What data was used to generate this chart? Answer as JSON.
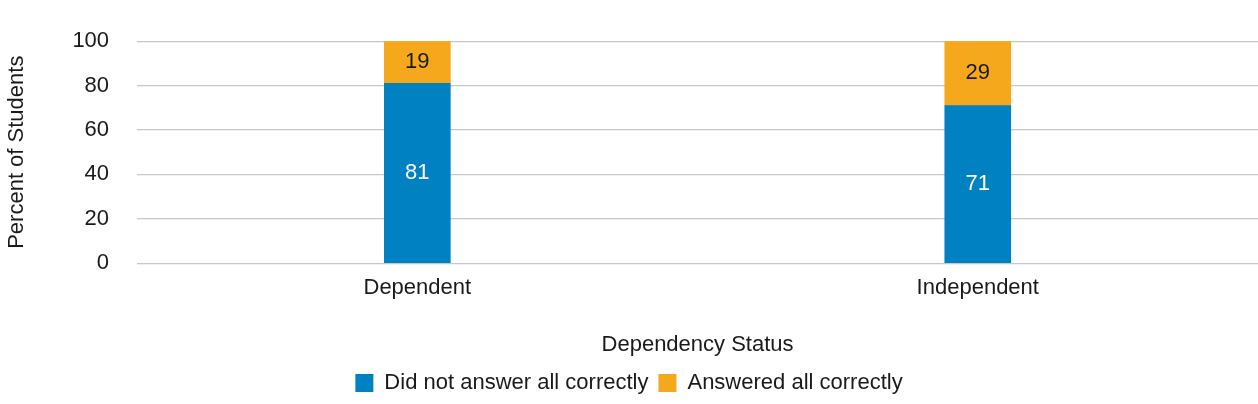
{
  "chart_data": {
    "type": "bar",
    "stacked": true,
    "xlabel": "Dependency Status",
    "ylabel": "Percent of Students",
    "categories": [
      "Dependent",
      "Independent"
    ],
    "series": [
      {
        "name": "Did not answer all correctly",
        "color": "#0081c2",
        "values": [
          81,
          71
        ]
      },
      {
        "name": "Answered all correctly",
        "color": "#f5a81c",
        "values": [
          19,
          29
        ]
      }
    ],
    "ylim": [
      0,
      100
    ],
    "yticks": [
      0,
      20,
      40,
      60,
      80,
      100
    ],
    "grid": "y",
    "legend": "bottom",
    "data_labels": true
  }
}
